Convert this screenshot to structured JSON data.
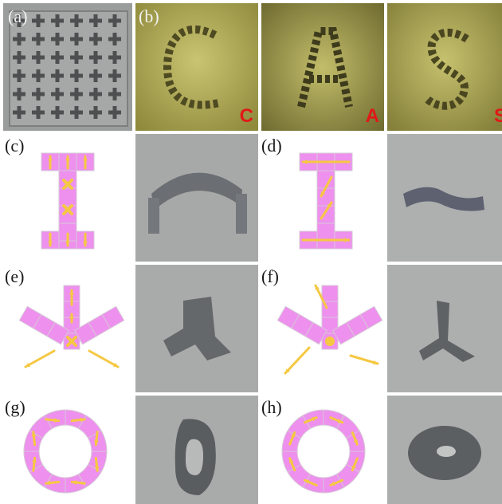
{
  "labels": {
    "a": "(a)",
    "b": "(b)",
    "c": "(c)",
    "d": "(d)",
    "e": "(e)",
    "f": "(f)",
    "g": "(g)",
    "h": "(h)"
  },
  "letters": [
    "C",
    "A",
    "S"
  ],
  "colors": {
    "pattern_fill": "#ee90ee",
    "pattern_grid": "#d6c8d6",
    "arrow": "#f5c842",
    "letter": "#e01818",
    "olive_bg": "#b8b25a",
    "grey_bg": "#a9abaa"
  },
  "icons": {
    "arrow": "arrow-icon",
    "cross": "cross-icon",
    "dot": "dot-icon"
  }
}
